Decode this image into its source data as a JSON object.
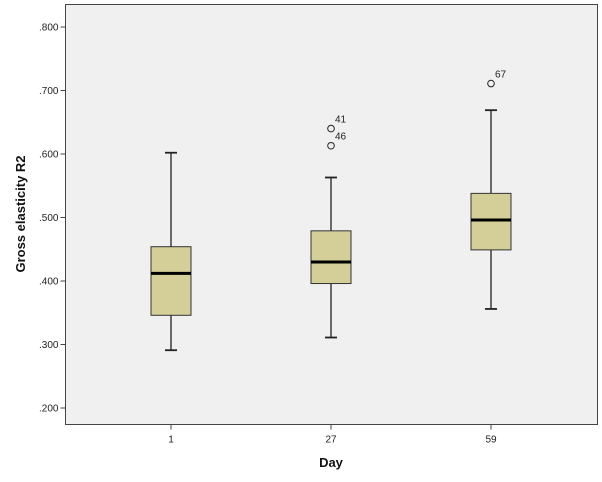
{
  "chart_data": {
    "type": "box",
    "title": "",
    "xlabel": "Day",
    "ylabel": "Gross elasticity R2",
    "ylim": [
      0.175,
      0.845
    ],
    "yticks": [
      0.2,
      0.3,
      0.4,
      0.5,
      0.6,
      0.7,
      0.8
    ],
    "ytick_labels": [
      ".200",
      ".300",
      ".400",
      ".500",
      ".600",
      ".700",
      ".800"
    ],
    "categories": [
      "1",
      "27",
      "59"
    ],
    "grid": false,
    "box_color": "#d4cf98",
    "plot_background": "#f0f0f0",
    "boxes": [
      {
        "category": "1",
        "whisker_low": 0.291,
        "q1": 0.346,
        "median": 0.412,
        "q3": 0.454,
        "whisker_high": 0.602,
        "outliers": []
      },
      {
        "category": "27",
        "whisker_low": 0.311,
        "q1": 0.396,
        "median": 0.43,
        "q3": 0.479,
        "whisker_high": 0.563,
        "outliers": [
          {
            "value": 0.64,
            "label": "41"
          },
          {
            "value": 0.613,
            "label": "46"
          }
        ]
      },
      {
        "category": "59",
        "whisker_low": 0.356,
        "q1": 0.449,
        "median": 0.496,
        "q3": 0.538,
        "whisker_high": 0.669,
        "outliers": [
          {
            "value": 0.711,
            "label": "67"
          }
        ]
      }
    ]
  }
}
